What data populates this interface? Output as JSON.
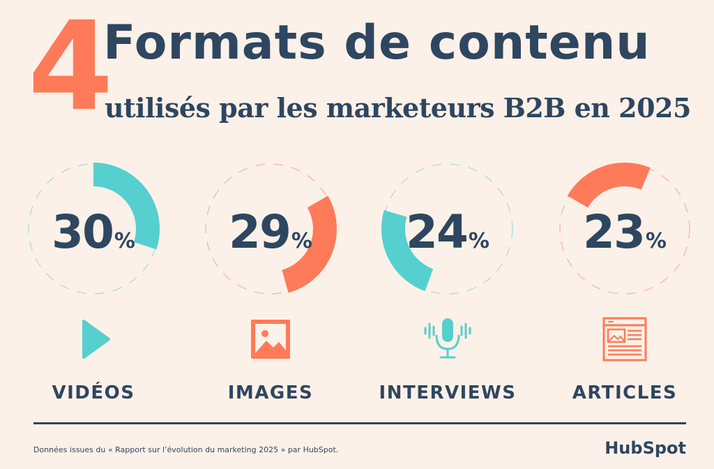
{
  "header": {
    "number": "4",
    "title": "Formats de contenu",
    "subtitle": "utilisés par les marketeurs B2B en 2025"
  },
  "chart_data": {
    "type": "pie",
    "unit": "%",
    "categories": [
      "VIDÉOS",
      "IMAGES",
      "INTERVIEWS",
      "ARTICLES"
    ],
    "values": [
      30,
      29,
      24,
      23
    ],
    "colors": [
      "#56cfcf",
      "#ff7a59",
      "#56cfcf",
      "#ff7a59"
    ],
    "icons": [
      "play-icon",
      "image-icon",
      "microphone-icon",
      "article-icon"
    ],
    "percent_symbol": "%"
  },
  "footer": {
    "source": "Données issues du « Rapport sur l’évolution du marketing 2025 » par HubSpot.",
    "logo": "HubSpot"
  }
}
